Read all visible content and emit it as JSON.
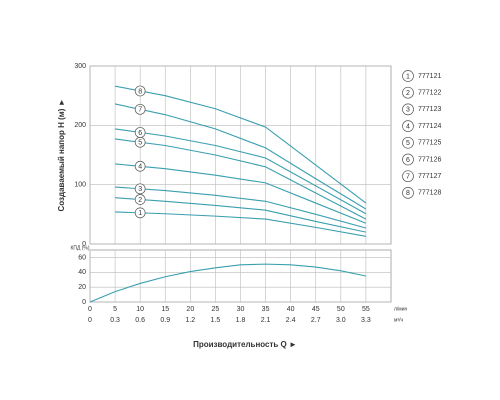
{
  "chart_data": [
    {
      "type": "line",
      "ylabel": "Создаваемый напор H (м) ►",
      "x": [
        5,
        15,
        25,
        35,
        45,
        55
      ],
      "xlim": [
        0,
        60
      ],
      "xticks": [
        0,
        5,
        10,
        15,
        20,
        25,
        30,
        35,
        40,
        45,
        50,
        55
      ],
      "ylim": [
        0,
        300
      ],
      "yticks": [
        0,
        100,
        200,
        300
      ],
      "grid": true,
      "color": "#3a9fb0",
      "series": [
        {
          "label": "1",
          "name": "777121",
          "values": [
            54,
            51,
            47,
            42,
            28,
            13
          ]
        },
        {
          "label": "2",
          "name": "777122",
          "values": [
            78,
            72,
            65,
            57,
            38,
            20
          ]
        },
        {
          "label": "3",
          "name": "777123",
          "values": [
            96,
            90,
            82,
            72,
            50,
            27
          ]
        },
        {
          "label": "4",
          "name": "777124",
          "values": [
            135,
            127,
            116,
            103,
            69,
            35
          ]
        },
        {
          "label": "5",
          "name": "777125",
          "values": [
            177,
            166,
            150,
            130,
            86,
            42
          ]
        },
        {
          "label": "6",
          "name": "777126",
          "values": [
            194,
            182,
            166,
            145,
            98,
            51
          ]
        },
        {
          "label": "7",
          "name": "777127",
          "values": [
            236,
            218,
            194,
            162,
            110,
            59
          ]
        },
        {
          "label": "8",
          "name": "777128",
          "values": [
            266,
            250,
            228,
            197,
            133,
            69
          ]
        }
      ]
    },
    {
      "type": "line",
      "ylabel": "КПД (%)",
      "xlabel": "Производительность Q ►",
      "x": [
        0,
        5,
        10,
        15,
        20,
        25,
        30,
        35,
        40,
        45,
        50,
        55
      ],
      "values": [
        0,
        14,
        25,
        34,
        41,
        46,
        50,
        51,
        50,
        47,
        42,
        35
      ],
      "xlim": [
        0,
        60
      ],
      "xticks": [
        0,
        5,
        10,
        15,
        20,
        25,
        30,
        35,
        40,
        45,
        50,
        55
      ],
      "xunit": "л/мин",
      "x2ticks": [
        0,
        {
          "value": 5,
          "label": "0.3"
        },
        {
          "value": 10,
          "label": "0.6"
        },
        {
          "value": 15,
          "label": "0.9"
        },
        {
          "value": 20,
          "label": "1.2"
        },
        {
          "value": 25,
          "label": "1.5"
        },
        {
          "value": 30,
          "label": "1.8"
        },
        {
          "value": 35,
          "label": "2.1"
        },
        {
          "value": 40,
          "label": "2.4"
        },
        {
          "value": 45,
          "label": "2.7"
        },
        {
          "value": 50,
          "label": "3.0"
        },
        {
          "value": 55,
          "label": "3.3"
        }
      ],
      "x2unit": "м³/ч",
      "ylim": [
        0,
        70
      ],
      "yticks": [
        0,
        20,
        40,
        60
      ],
      "grid": true,
      "color": "#3a9fb0"
    }
  ]
}
